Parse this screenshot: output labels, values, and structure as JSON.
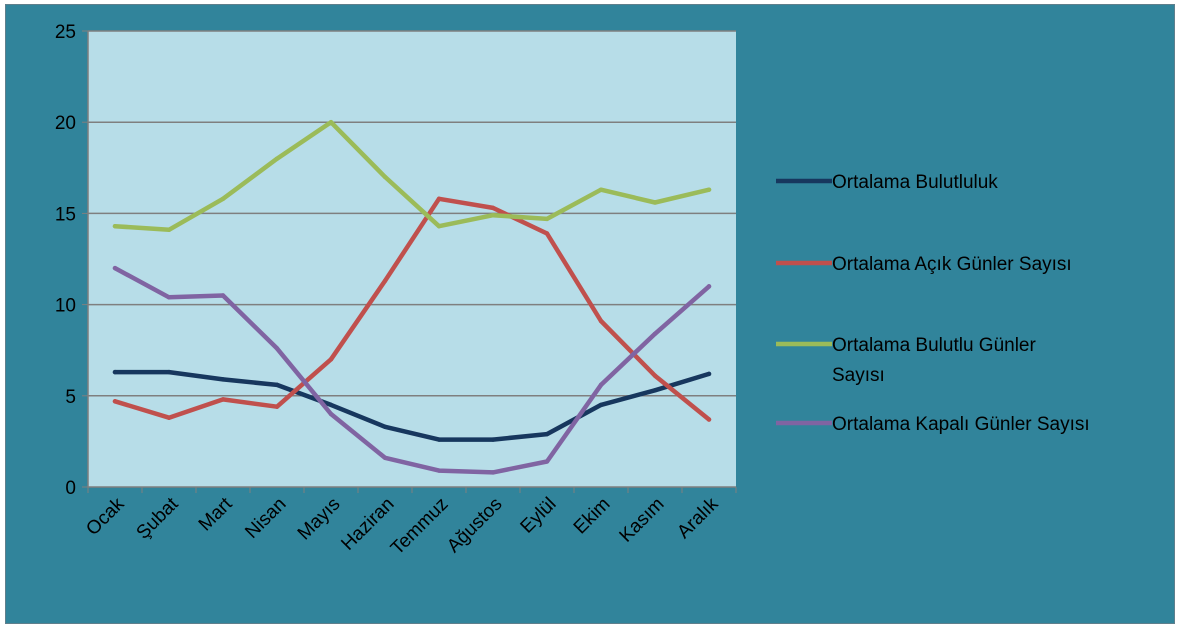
{
  "colors": {
    "frame_background": "#31849b",
    "plot_background": "#b7dde8",
    "gridline": "#7f7f7f"
  },
  "chart_data": {
    "type": "line",
    "title": "",
    "xlabel": "",
    "ylabel": "",
    "categories": [
      "Ocak",
      "Şubat",
      "Mart",
      "Nisan",
      "Mayıs",
      "Haziran",
      "Temmuz",
      "Ağustos",
      "Eylül",
      "Ekim",
      "Kasım",
      "Aralık"
    ],
    "ylim": [
      0,
      25
    ],
    "yticks": [
      "0",
      "5",
      "10",
      "15",
      "20",
      "25"
    ],
    "grid": true,
    "legend_position": "right",
    "series": [
      {
        "name": "Ortalama Bulutluluk",
        "legend_lines": [
          "Ortalama Bulutluluk"
        ],
        "color": "#17375e",
        "values": [
          6.3,
          6.3,
          5.9,
          5.6,
          4.5,
          3.3,
          2.6,
          2.6,
          2.9,
          4.5,
          5.3,
          6.2
        ]
      },
      {
        "name": "Ortalama Açık Günler Sayısı",
        "legend_lines": [
          "Ortalama Açık Günler Sayısı"
        ],
        "color": "#c0504d",
        "values": [
          4.7,
          3.8,
          4.8,
          4.4,
          7.0,
          11.3,
          15.8,
          15.3,
          13.9,
          9.1,
          6.1,
          3.7
        ]
      },
      {
        "name": "Ortalama Bulutlu Günler Sayısı",
        "legend_lines": [
          "Ortalama Bulutlu Günler",
          "Sayısı"
        ],
        "color": "#9bbb59",
        "values": [
          14.3,
          14.1,
          15.8,
          18.0,
          20.0,
          17.0,
          14.3,
          14.9,
          14.7,
          16.3,
          15.6,
          16.3
        ]
      },
      {
        "name": "Ortalama Kapalı Günler Sayısı",
        "legend_lines": [
          "Ortalama Kapalı Günler Sayısı"
        ],
        "color": "#8064a2",
        "values": [
          12.0,
          10.4,
          10.5,
          7.6,
          4.0,
          1.6,
          0.9,
          0.8,
          1.4,
          5.6,
          8.4,
          11.0
        ]
      }
    ]
  }
}
